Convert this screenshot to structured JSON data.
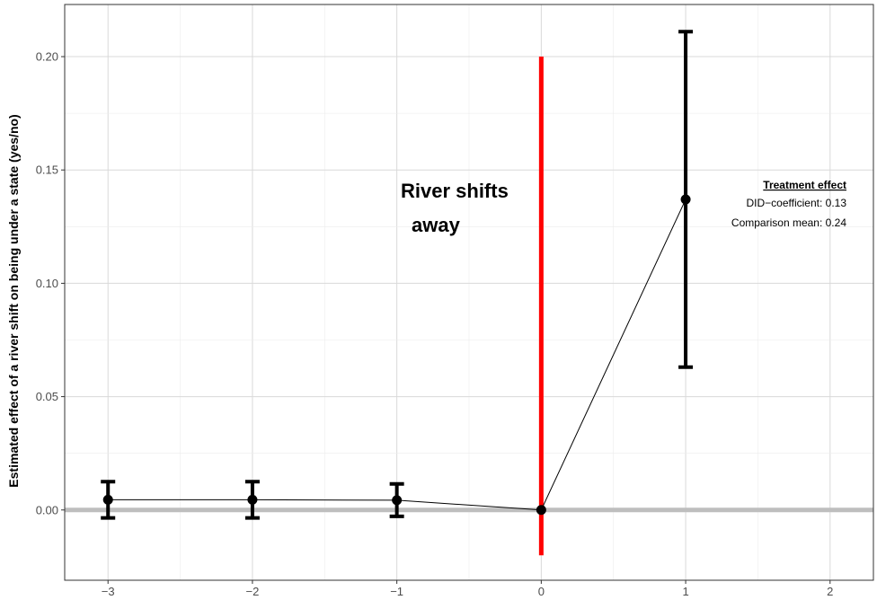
{
  "chart_data": {
    "type": "line",
    "title": "",
    "xlabel": "",
    "ylabel": "Estimated effect of a river shift on being under a state (yes/no)",
    "xlim": [
      -3.3,
      2.3
    ],
    "ylim": [
      -0.031,
      0.223
    ],
    "x_ticks": [
      -3,
      -2,
      -1,
      0,
      1,
      2
    ],
    "x_tick_labels": [
      "−3",
      "−2",
      "−1",
      "0",
      "1",
      "2"
    ],
    "y_ticks": [
      0.0,
      0.05,
      0.1,
      0.15,
      0.2
    ],
    "y_tick_labels": [
      "0.00",
      "0.05",
      "0.10",
      "0.15",
      "0.20"
    ],
    "grid": true,
    "series": [
      {
        "x": [
          -3,
          -2,
          -1,
          0,
          1
        ],
        "y": [
          0.0045,
          0.0045,
          0.0043,
          0.0,
          0.137
        ],
        "ci_low": [
          -0.0035,
          -0.0035,
          -0.0028,
          0.0,
          0.063
        ],
        "ci_high": [
          0.0125,
          0.0125,
          0.0115,
          0.0,
          0.211
        ]
      }
    ],
    "reference_lines": {
      "horizontal_y": 0.0,
      "vertical": {
        "x": 0,
        "y_from": -0.02,
        "y_to": 0.2,
        "color": "#ff0000"
      }
    },
    "annotations": {
      "event_label_line1": "River shifts",
      "event_label_line2": "away",
      "effect_title": "Treatment effect",
      "effect_line1": "DID−coefficient: 0.13",
      "effect_line2": "Comparison mean: 0.24"
    },
    "colors": {
      "points": "#000000",
      "zero_line": "#bebebe",
      "event_line": "#ff0000",
      "grid": "#d9d9d9"
    }
  }
}
